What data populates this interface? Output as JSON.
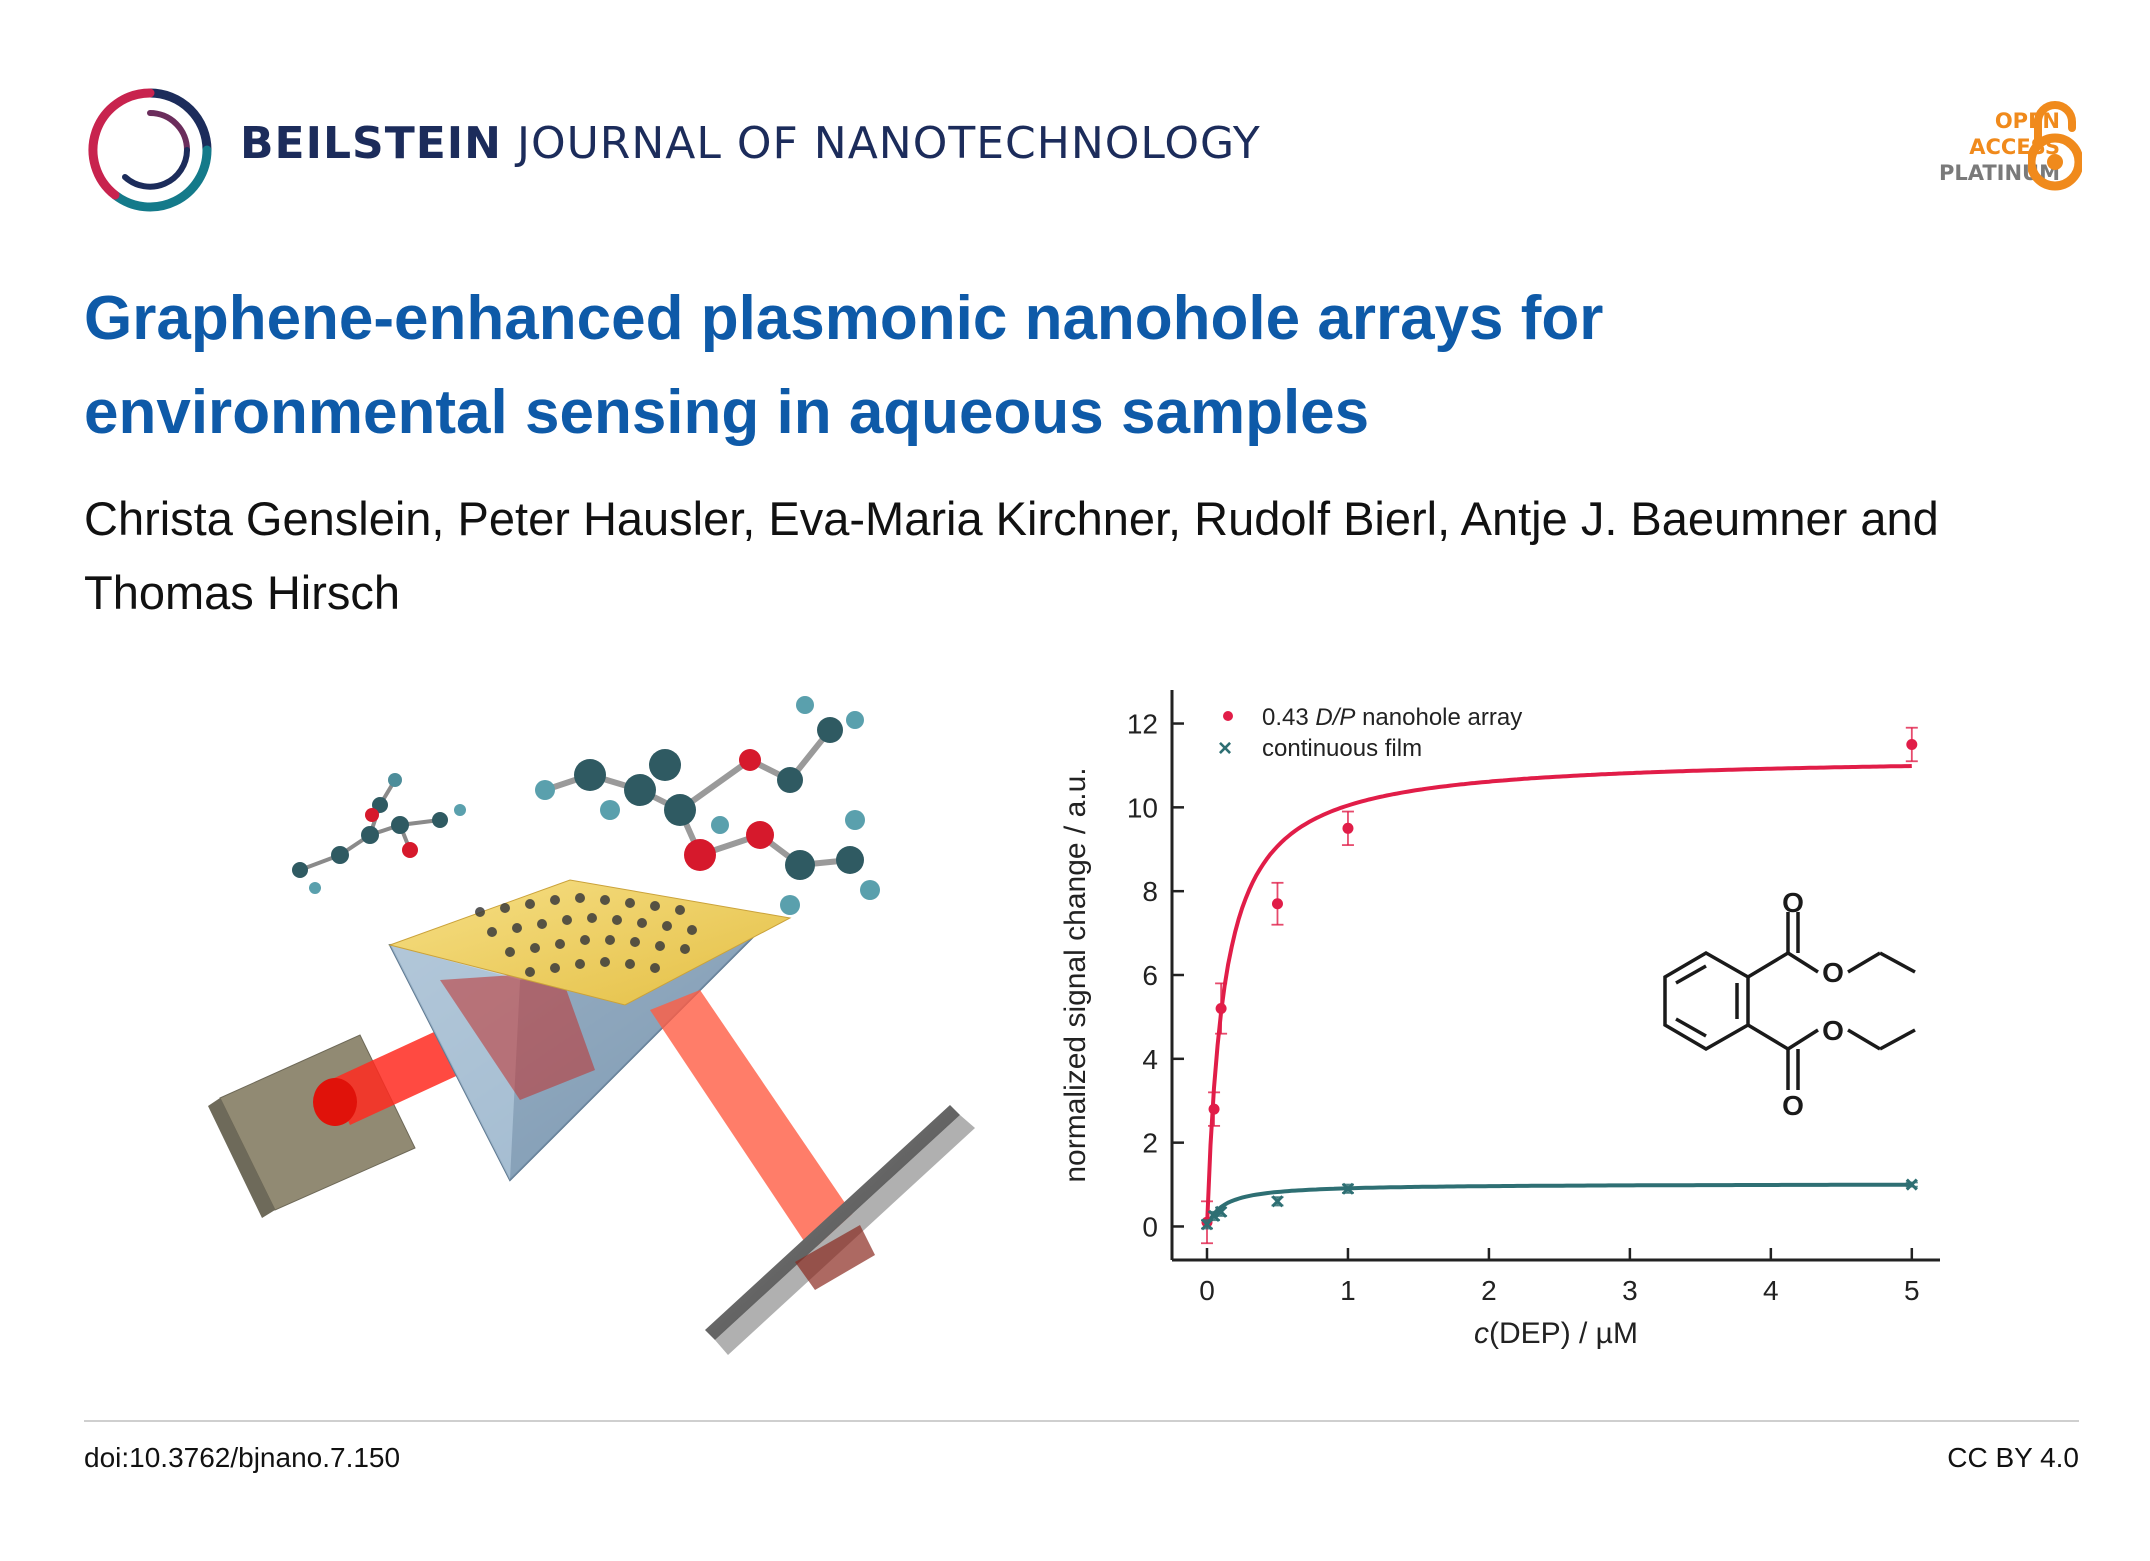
{
  "journal": {
    "name_bold": "BEILSTEIN",
    "name_rest": "JOURNAL OF NANOTECHNOLOGY"
  },
  "open_access": {
    "line1": "OPEN",
    "line2": "ACCESS",
    "line3": "PLATINUM",
    "color": "#f08a1c"
  },
  "article": {
    "title": "Graphene-enhanced plasmonic nanohole arrays for environmental sensing in aqueous samples",
    "authors": "Christa Genslein, Peter Hausler, Eva-Maria Kirchner, Rudolf Bierl, Antje J. Baeumner and Thomas Hirsch"
  },
  "footer": {
    "doi": "doi:10.3762/bjnano.7.150",
    "license": "CC BY 4.0"
  },
  "colors": {
    "title": "#0e5aa8",
    "nanohole": "#e11d48",
    "film": "#2e6f73"
  },
  "chart_data": {
    "type": "scatter",
    "xlabel_italic": "c",
    "xlabel_rest": "(DEP) / µM",
    "ylabel": "normalized signal change / a.u.",
    "xlim": [
      0,
      5.2
    ],
    "ylim": [
      -0.8,
      12.8
    ],
    "xticks": [
      0,
      1,
      2,
      3,
      4,
      5
    ],
    "yticks": [
      0,
      2,
      4,
      6,
      8,
      10,
      12
    ],
    "legend_position": "top-left",
    "series": [
      {
        "name_prefix": "0.43 ",
        "name_italic": "D/P",
        "name_suffix": " nanohole array",
        "color": "#e11d48",
        "marker": "circle",
        "points": [
          {
            "x": 0,
            "y": 0.1,
            "err": 0.5
          },
          {
            "x": 0.05,
            "y": 2.8,
            "err": 0.4
          },
          {
            "x": 0.1,
            "y": 5.2,
            "err": 0.6
          },
          {
            "x": 0.5,
            "y": 7.7,
            "err": 0.5
          },
          {
            "x": 1,
            "y": 9.5,
            "err": 0.4
          },
          {
            "x": 5,
            "y": 11.5,
            "err": 0.4
          }
        ],
        "fit": {
          "bmax": 11.25,
          "kd": 0.12
        }
      },
      {
        "name": "continuous film",
        "color": "#2e6f73",
        "marker": "cross",
        "points": [
          {
            "x": 0,
            "y": 0.05,
            "err": 0.1
          },
          {
            "x": 0.05,
            "y": 0.25,
            "err": 0.1
          },
          {
            "x": 0.1,
            "y": 0.35,
            "err": 0.1
          },
          {
            "x": 0.5,
            "y": 0.6,
            "err": 0.1
          },
          {
            "x": 1,
            "y": 0.9,
            "err": 0.1
          },
          {
            "x": 5,
            "y": 1.0,
            "err": 0.05
          }
        ],
        "fit": {
          "bmax": 1.02,
          "kd": 0.12
        }
      }
    ]
  }
}
